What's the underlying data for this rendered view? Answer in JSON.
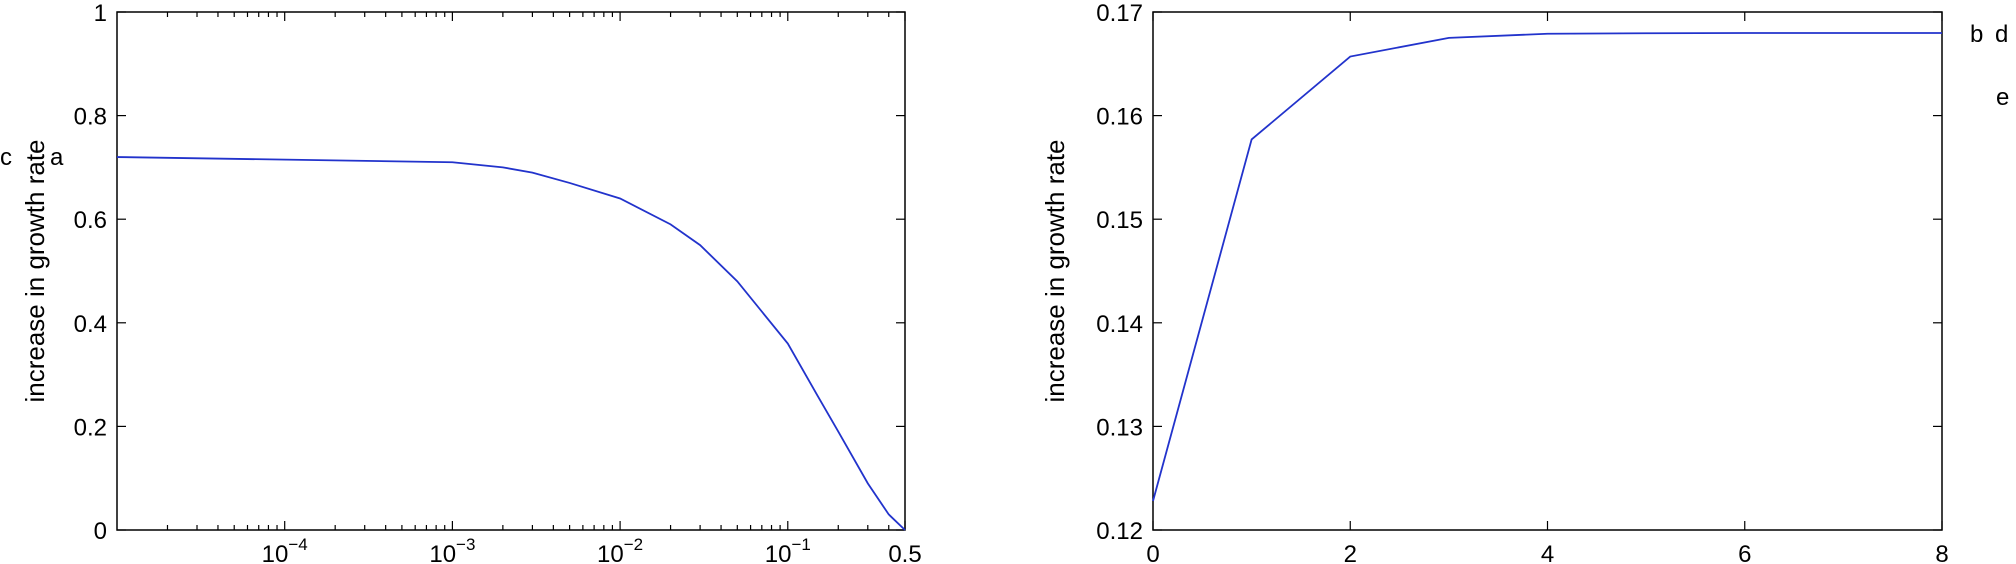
{
  "chart_data": [
    {
      "type": "line",
      "x_scale": "log",
      "xlim": [
        1e-05,
        0.5
      ],
      "ylim": [
        0,
        1
      ],
      "y_ticks": [
        0,
        0.2,
        0.4,
        0.6,
        0.8,
        1
      ],
      "y_tick_labels": [
        "0",
        "0.2",
        "0.4",
        "0.6",
        "0.8",
        "1"
      ],
      "x_ticks": [
        0.0001,
        0.001,
        0.01,
        0.1,
        0.5
      ],
      "x_tick_labels": [
        {
          "base": "10",
          "exp": "−4"
        },
        {
          "base": "10",
          "exp": "−3"
        },
        {
          "base": "10",
          "exp": "−2"
        },
        {
          "base": "10",
          "exp": "−1"
        },
        {
          "base": "0.5",
          "exp": ""
        }
      ],
      "ylabel": "increase in growth rate",
      "xlabel": "",
      "color": "#2233cc",
      "series": [
        {
          "x": [
            1e-05,
            0.001,
            0.002,
            0.003,
            0.005,
            0.01,
            0.02,
            0.03,
            0.05,
            0.1,
            0.15,
            0.2,
            0.3,
            0.4,
            0.5
          ],
          "y": [
            0.72,
            0.71,
            0.7,
            0.69,
            0.67,
            0.64,
            0.59,
            0.55,
            0.48,
            0.36,
            0.26,
            0.19,
            0.09,
            0.03,
            0.0
          ]
        }
      ],
      "panel_labels": [
        "c",
        "a"
      ]
    },
    {
      "type": "line",
      "xlim": [
        0,
        8
      ],
      "ylim": [
        0.12,
        0.17
      ],
      "y_ticks": [
        0.12,
        0.13,
        0.14,
        0.15,
        0.16,
        0.17
      ],
      "y_tick_labels": [
        "0.12",
        "0.13",
        "0.14",
        "0.15",
        "0.16",
        "0.17"
      ],
      "x_ticks": [
        0,
        2,
        4,
        6,
        8
      ],
      "x_tick_labels": [
        "0",
        "2",
        "4",
        "6",
        "8"
      ],
      "ylabel": "increase in growth rate",
      "xlabel": "",
      "color": "#2233cc",
      "series": [
        {
          "x": [
            0,
            1,
            2,
            3,
            4,
            5,
            6,
            7,
            8
          ],
          "y": [
            0.1228,
            0.1577,
            0.1657,
            0.1675,
            0.1679,
            0.16795,
            0.16797,
            0.16797,
            0.16797
          ]
        }
      ],
      "panel_labels": [
        "b",
        "d",
        "e"
      ]
    }
  ]
}
